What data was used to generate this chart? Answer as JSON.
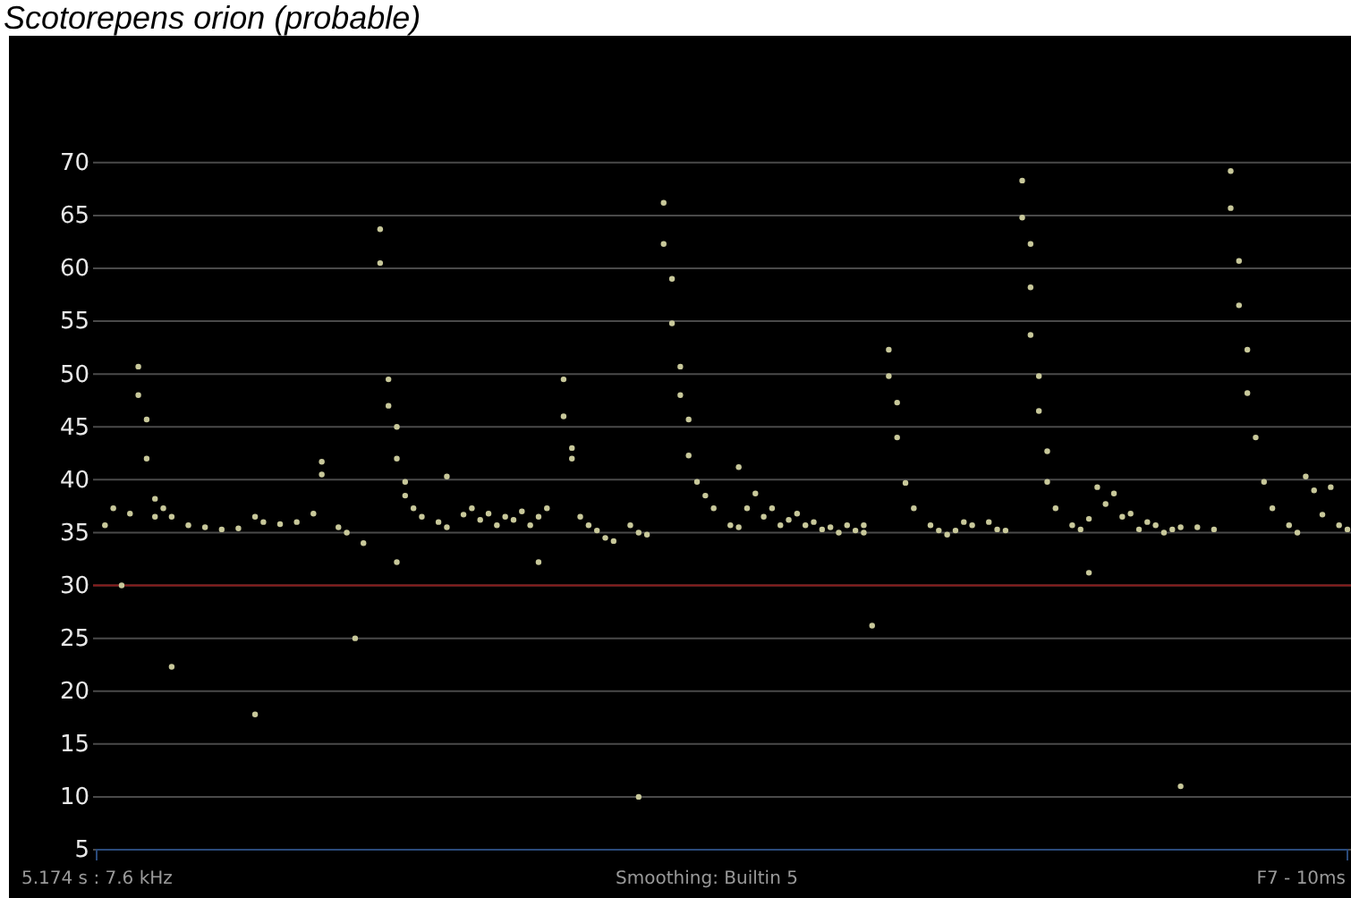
{
  "chart_data": {
    "type": "scatter",
    "title": "Scotorepens orion (probable)",
    "categories": [
      null,
      null,
      null,
      null,
      null,
      null,
      null,
      null,
      null,
      null,
      null,
      null,
      null,
      null,
      null,
      null,
      null,
      null,
      null,
      null,
      null,
      null,
      null,
      null,
      null,
      null,
      null,
      null,
      null,
      null,
      null,
      null,
      null,
      null,
      null,
      null,
      null,
      null,
      null,
      null,
      null,
      null,
      null,
      null,
      null,
      null,
      null,
      null,
      null,
      null,
      null,
      null,
      null,
      null,
      null,
      null,
      null,
      null,
      null,
      null,
      null,
      null,
      null,
      null,
      null,
      null,
      null,
      null,
      null,
      null,
      null,
      null,
      null,
      null,
      null,
      null,
      null,
      null,
      null,
      null,
      null,
      null,
      null,
      null,
      null,
      null,
      null,
      null,
      null,
      null,
      null,
      null,
      null,
      null,
      null,
      null,
      null,
      null,
      null,
      null,
      null,
      null,
      null,
      null,
      null,
      null,
      null,
      null,
      null,
      null,
      null,
      null,
      null,
      null,
      null,
      null,
      null,
      null,
      null,
      null,
      null,
      null,
      null,
      null,
      null,
      null,
      null,
      null,
      null,
      null,
      null,
      null,
      null,
      null,
      null,
      null,
      null,
      null,
      null,
      null,
      null,
      null,
      null,
      null,
      null,
      null,
      null,
      null,
      null,
      null,
      null
    ],
    "series": [
      {
        "color": "#c8c89a",
        "values": [
          null,
          35.7,
          37.3,
          30,
          36.8,
          50.7,
          45.7,
          38.2,
          37.3,
          36.5,
          null,
          35.7,
          null,
          35.5,
          null,
          35.3,
          null,
          35.4,
          null,
          36.5,
          36.0,
          null,
          35.8,
          null,
          36.0,
          null,
          36.8,
          41.7,
          null,
          35.5,
          35.0,
          25,
          34.0,
          null,
          63.7,
          49.5,
          45.0,
          39.8,
          37.3,
          36.5,
          null,
          36.0,
          35.5,
          null,
          36.7,
          37.3,
          36.2,
          36.8,
          35.7,
          36.5,
          36.2,
          37.0,
          35.7,
          36.5,
          37.3,
          null,
          49.5,
          43.0,
          36.5,
          35.7,
          35.2,
          34.5,
          34.2,
          null,
          35.7,
          35.0,
          34.8,
          null,
          66.2,
          59.0,
          50.7,
          45.7,
          39.8,
          38.5,
          37.3,
          null,
          35.7,
          35.5,
          37.3,
          38.7,
          36.5,
          37.3,
          35.7,
          36.2,
          36.8,
          35.7,
          36.0,
          35.3,
          35.5,
          35.0,
          35.7,
          35.2,
          35.7,
          26.2,
          null,
          52.3,
          47.3,
          39.7,
          37.3,
          null,
          35.7,
          35.2,
          34.8,
          35.2,
          36.0,
          35.7,
          null,
          36.0,
          35.3,
          35.2,
          null,
          68.3,
          62.3,
          49.8,
          42.7,
          37.3,
          null,
          35.7,
          35.3,
          36.3,
          39.3,
          37.7,
          38.7,
          36.5,
          36.8,
          35.3,
          36.0,
          35.7,
          35.0,
          35.3,
          35.5,
          null,
          35.5,
          null,
          35.3,
          null,
          69.2,
          60.7,
          52.3,
          44.0,
          39.8,
          37.3,
          null,
          35.7,
          35.0,
          40.3,
          39.0,
          36.7,
          39.3,
          35.7,
          35.3
        ]
      },
      {
        "color": "#c8c89a",
        "values": [
          null,
          null,
          null,
          null,
          null,
          48.0,
          42.0,
          36.5,
          null,
          22.3,
          null,
          null,
          null,
          null,
          null,
          null,
          null,
          null,
          null,
          17.8,
          null,
          null,
          null,
          null,
          null,
          null,
          null,
          40.5,
          null,
          null,
          null,
          null,
          null,
          null,
          60.5,
          47.0,
          42.0,
          38.5,
          null,
          null,
          null,
          null,
          40.3,
          null,
          null,
          null,
          null,
          null,
          null,
          null,
          null,
          null,
          null,
          null,
          null,
          null,
          46.0,
          42.0,
          null,
          null,
          null,
          null,
          null,
          null,
          null,
          null,
          null,
          null,
          62.3,
          54.8,
          48.0,
          42.3,
          null,
          null,
          null,
          null,
          null,
          41.2,
          null,
          null,
          null,
          null,
          null,
          null,
          null,
          null,
          null,
          null,
          null,
          null,
          null,
          null,
          35.0,
          null,
          null,
          49.8,
          44.0,
          null,
          null,
          null,
          null,
          null,
          null,
          null,
          null,
          null,
          null,
          null,
          null,
          null,
          null,
          64.8,
          58.2,
          46.5,
          39.8,
          null,
          null,
          null,
          null,
          31.2,
          null,
          null,
          null,
          null,
          null,
          null,
          null,
          null,
          null,
          null,
          11,
          null,
          null,
          null,
          null,
          null,
          65.7,
          56.5,
          48.2,
          null,
          null,
          null,
          null,
          null,
          null,
          null,
          null,
          null,
          null,
          null,
          null
        ]
      },
      {
        "color": "#c8c89a",
        "values": [
          null,
          null,
          null,
          null,
          null,
          null,
          null,
          null,
          null,
          null,
          null,
          null,
          null,
          null,
          null,
          null,
          null,
          null,
          null,
          null,
          null,
          null,
          null,
          null,
          null,
          null,
          null,
          null,
          null,
          null,
          null,
          null,
          null,
          null,
          null,
          null,
          32.2,
          null,
          null,
          null,
          null,
          null,
          null,
          null,
          null,
          null,
          null,
          null,
          null,
          null,
          null,
          null,
          null,
          32.2,
          null,
          null,
          null,
          null,
          null,
          null,
          null,
          null,
          null,
          null,
          null,
          10,
          null,
          null,
          null,
          null,
          null,
          null,
          null,
          null,
          null,
          null,
          null,
          null,
          null,
          null,
          null,
          null,
          null,
          null,
          null,
          null,
          null,
          null,
          null,
          null,
          null,
          null,
          null,
          null,
          null,
          null,
          null,
          null,
          null,
          null,
          null,
          null,
          null,
          null,
          null,
          null,
          null,
          null,
          null,
          null,
          null,
          null,
          53.7,
          null,
          null,
          null,
          null,
          null,
          null,
          null,
          null,
          null,
          null,
          null,
          null,
          null,
          null,
          null,
          null,
          null,
          null,
          null,
          null,
          null,
          null,
          null,
          null,
          null,
          null,
          null,
          null,
          null,
          null,
          null,
          null,
          null,
          null,
          null,
          null,
          null,
          null
        ]
      }
    ],
    "ylim": [
      5,
      82
    ],
    "yticks": [
      5,
      10,
      15,
      20,
      25,
      30,
      35,
      40,
      45,
      50,
      55,
      60,
      65,
      70
    ],
    "grid": "y",
    "marker": "circle",
    "tick_labels": "y",
    "ref_lines": [
      {
        "axis": "y",
        "value": 30,
        "color": "#8b1a1a"
      }
    ],
    "annotations": [
      "5.174 s : 7.6 kHz",
      "Smoothing: Builtin 5",
      "F7 - 10ms"
    ]
  }
}
